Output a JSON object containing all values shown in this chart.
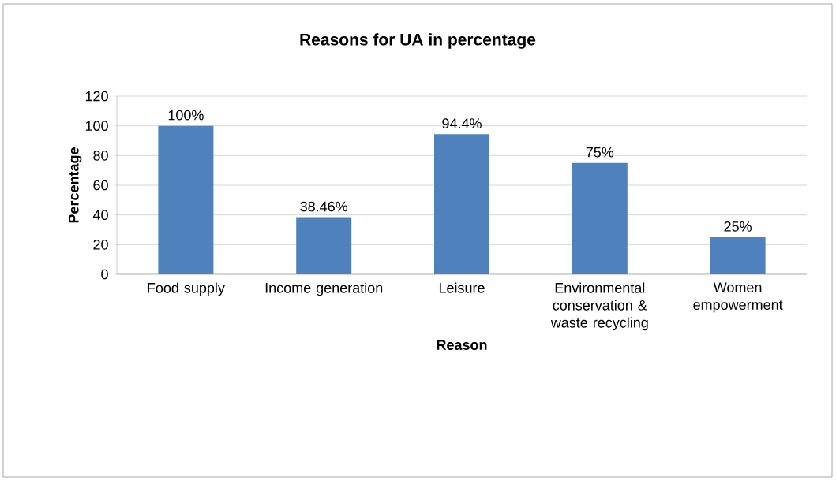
{
  "chart_data": {
    "type": "bar",
    "title": "Reasons for UA in percentage",
    "xlabel": "Reason",
    "ylabel": "Percentage",
    "categories": [
      "Food supply",
      "Income generation",
      "Leisure",
      "Environmental conservation & waste recycling",
      "Women empowerment"
    ],
    "values": [
      100,
      38.46,
      94.4,
      75,
      25
    ],
    "value_labels": [
      "100%",
      "38.46%",
      "94.4%",
      "75%",
      "25%"
    ],
    "color": "#4f81bd",
    "ylim": [
      0,
      120
    ],
    "yticks": [
      0,
      20,
      40,
      60,
      80,
      100,
      120
    ],
    "grid": "y"
  }
}
